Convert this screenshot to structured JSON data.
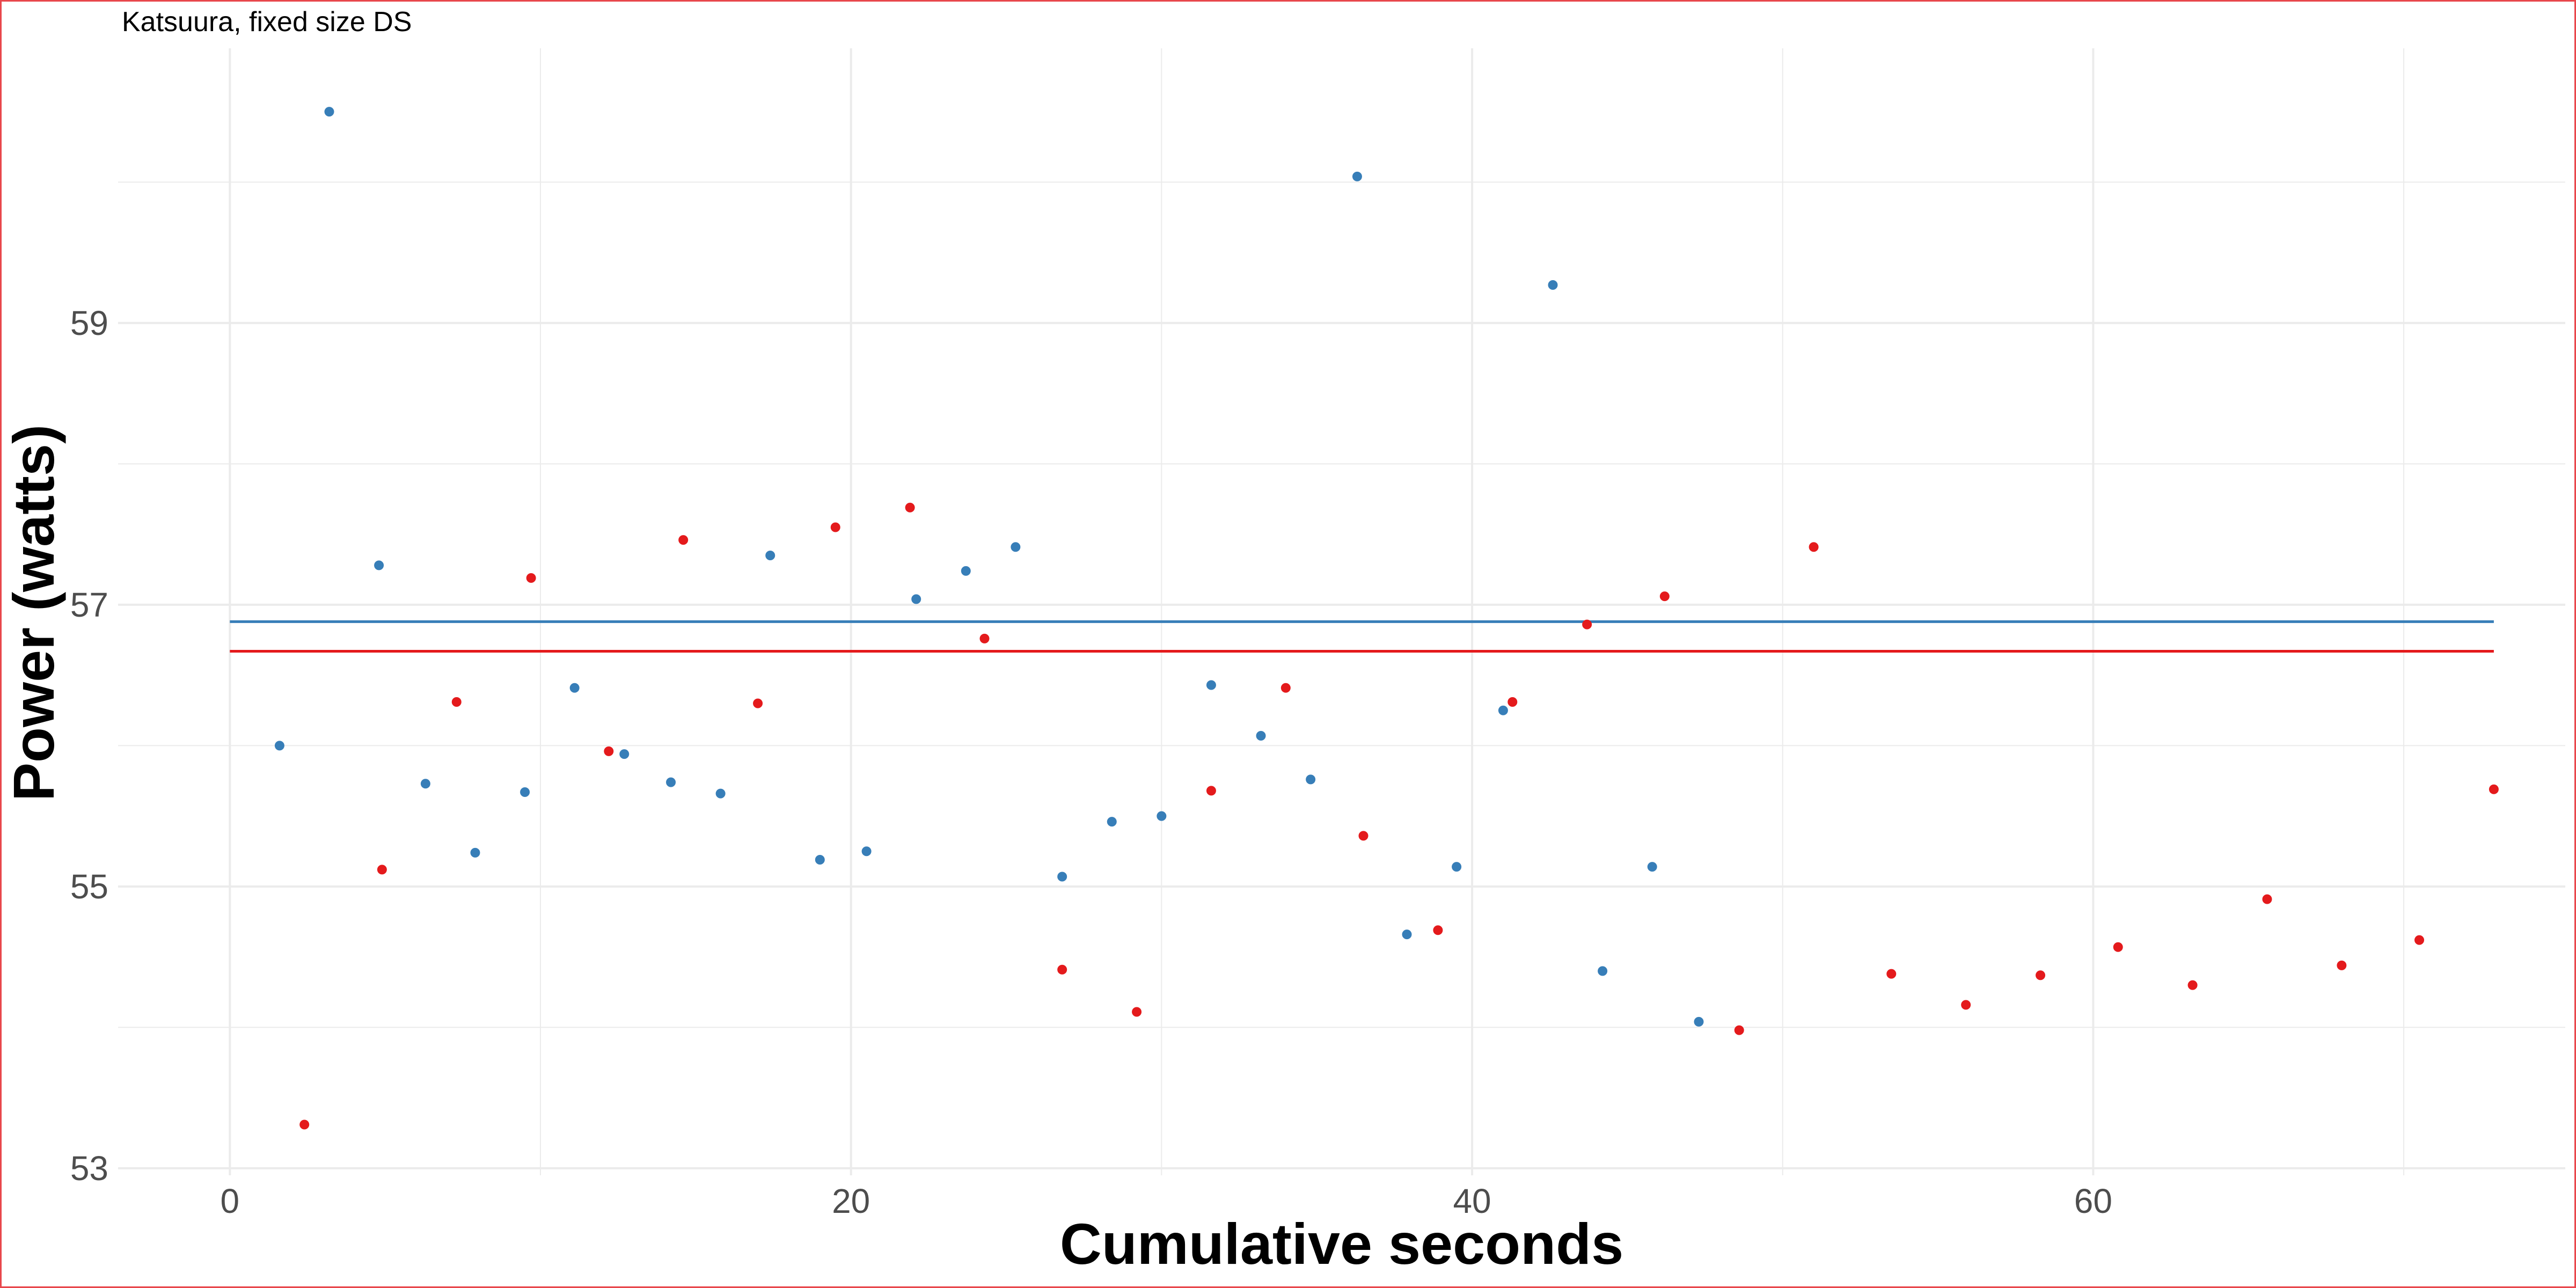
{
  "chart_data": {
    "type": "scatter",
    "title": "Katsuura, fixed size DS",
    "xlabel": "Cumulative seconds",
    "ylabel": "Power (watts)",
    "xlim": [
      -3.6,
      75.2
    ],
    "ylim": [
      52.95,
      60.95
    ],
    "x_ticks": [
      0,
      20,
      40,
      60
    ],
    "y_ticks": [
      53,
      55,
      57,
      59
    ],
    "grid": true,
    "colors": {
      "blue": "#377eb8",
      "red": "#e41a1c",
      "grid": "#ebebeb"
    },
    "series": [
      {
        "color": "blue",
        "points": [
          [
            1.6,
            56.0
          ],
          [
            3.2,
            60.5
          ],
          [
            4.8,
            57.28
          ],
          [
            6.3,
            55.73
          ],
          [
            7.9,
            55.24
          ],
          [
            9.5,
            55.67
          ],
          [
            11.1,
            56.41
          ],
          [
            12.7,
            55.94
          ],
          [
            14.2,
            55.74
          ],
          [
            15.8,
            55.66
          ],
          [
            17.4,
            57.35
          ],
          [
            19.0,
            55.19
          ],
          [
            20.5,
            55.25
          ],
          [
            22.1,
            57.04
          ],
          [
            23.7,
            57.24
          ],
          [
            25.3,
            57.41
          ],
          [
            26.8,
            55.07
          ],
          [
            28.4,
            55.46
          ],
          [
            30.0,
            55.5
          ],
          [
            31.6,
            56.43
          ],
          [
            33.2,
            56.07
          ],
          [
            34.8,
            55.76
          ],
          [
            36.3,
            60.04
          ],
          [
            37.9,
            54.66
          ],
          [
            39.5,
            55.14
          ],
          [
            41.0,
            56.25
          ],
          [
            42.6,
            59.27
          ],
          [
            44.2,
            54.4
          ],
          [
            45.8,
            55.14
          ],
          [
            47.3,
            54.04
          ]
        ]
      },
      {
        "color": "red",
        "points": [
          [
            2.4,
            53.31
          ],
          [
            4.9,
            55.12
          ],
          [
            7.3,
            56.31
          ],
          [
            9.7,
            57.19
          ],
          [
            12.2,
            55.96
          ],
          [
            14.6,
            57.46
          ],
          [
            17.0,
            56.3
          ],
          [
            19.5,
            57.55
          ],
          [
            21.9,
            57.69
          ],
          [
            24.3,
            56.76
          ],
          [
            26.8,
            54.41
          ],
          [
            29.2,
            54.11
          ],
          [
            31.6,
            55.68
          ],
          [
            34.0,
            56.41
          ],
          [
            36.5,
            55.36
          ],
          [
            38.9,
            54.69
          ],
          [
            41.3,
            56.31
          ],
          [
            43.7,
            56.86
          ],
          [
            46.2,
            57.06
          ],
          [
            48.6,
            53.98
          ],
          [
            51.0,
            57.41
          ],
          [
            53.5,
            54.38
          ],
          [
            55.9,
            54.16
          ],
          [
            58.3,
            54.37
          ],
          [
            60.8,
            54.57
          ],
          [
            63.2,
            54.3
          ],
          [
            65.6,
            54.91
          ],
          [
            68.0,
            54.44
          ],
          [
            70.5,
            54.62
          ],
          [
            72.9,
            55.69
          ]
        ]
      }
    ],
    "hlines": [
      {
        "color": "blue",
        "y": 56.88
      },
      {
        "color": "red",
        "y": 56.67
      }
    ]
  }
}
